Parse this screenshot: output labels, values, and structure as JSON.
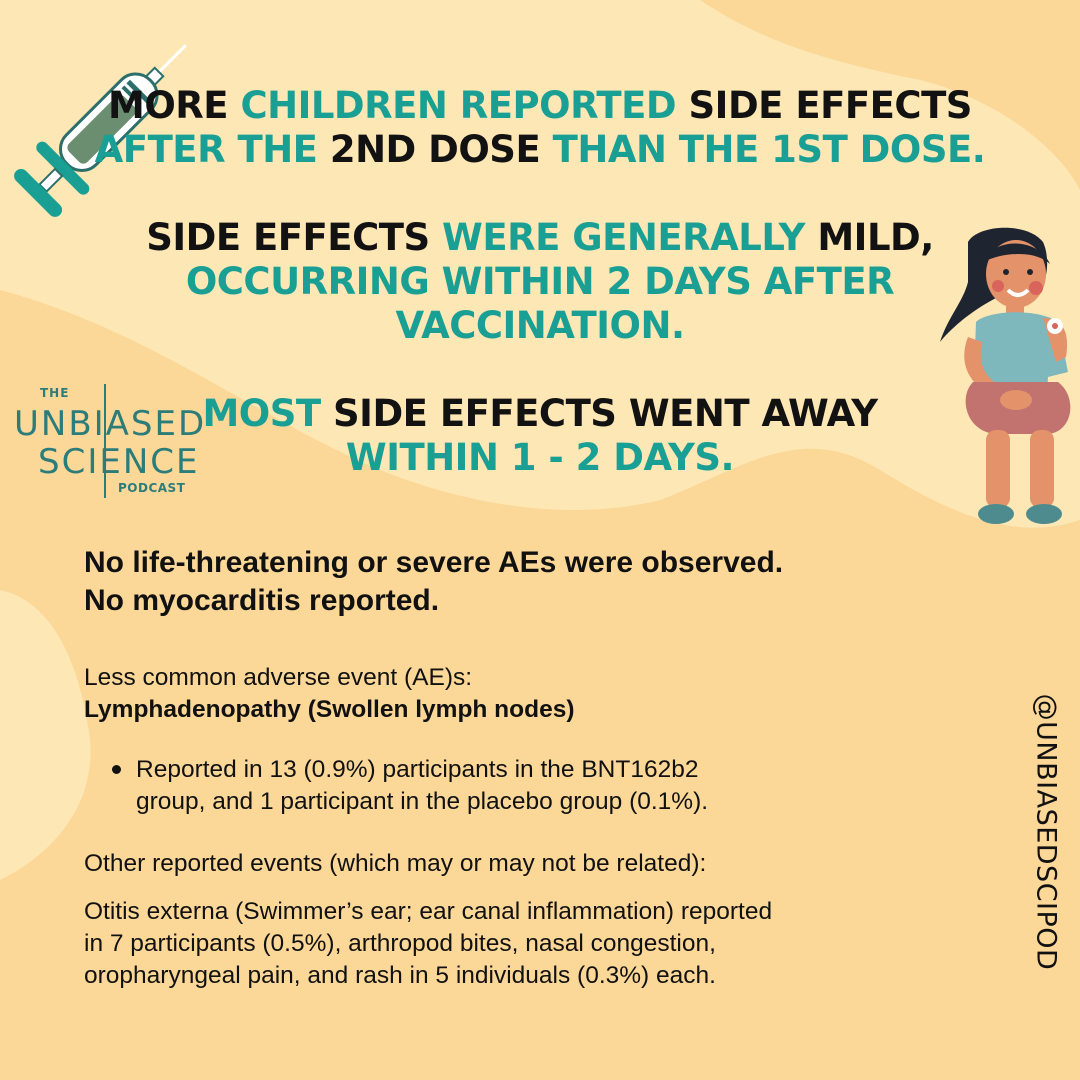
{
  "headline": {
    "block1": {
      "line1": [
        "MORE",
        "CHILDREN REPORTED",
        "SIDE EFFECTS"
      ],
      "line2": [
        "AFTER THE",
        "2ND DOSE",
        "THAN THE 1ST DOSE."
      ]
    },
    "block2": {
      "line1": [
        "SIDE EFFECTS",
        "WERE GENERALLY",
        "MILD,"
      ],
      "line2": "OCCURRING WITHIN 2 DAYS AFTER VACCINATION."
    },
    "block3": {
      "line1": [
        "MOST",
        "SIDE EFFECTS WENT AWAY"
      ],
      "line2": "WITHIN 1 - 2 DAYS."
    }
  },
  "logo": {
    "the": "THE",
    "word1": "UNBIASED",
    "word2": "SCIENCE",
    "podcast": "PODCAST"
  },
  "body": {
    "key_line1": "No life-threatening or severe AEs were observed.",
    "key_line2": "No myocarditis reported.",
    "less_common_label": "Less common adverse event (AE)s:",
    "less_common_title": "Lymphadenopathy (Swollen lymph nodes)",
    "bullet_line1": "Reported in 13 (0.9%) participants in the BNT162b2",
    "bullet_line2": "group, and 1 participant in the placebo group (0.1%).",
    "other_label": "Other reported events (which may or may not be related):",
    "other_line1": "Otitis externa (Swimmer’s ear; ear canal inflammation) reported",
    "other_line2": "in 7 participants (0.5%), arthropod bites, nasal congestion,",
    "other_line3": "oropharyngeal pain, and rash in 5 individuals (0.3%) each."
  },
  "handle": "@UNBIASEDSCIPOD",
  "colors": {
    "background": "#fcd898",
    "blob": "#fde7b4",
    "teal": "#1a9f95",
    "black": "#121212",
    "logo": "#2c7c7a"
  },
  "icons": [
    "syringe-icon",
    "girl-with-bandage-illustration",
    "unbiased-science-logo"
  ]
}
